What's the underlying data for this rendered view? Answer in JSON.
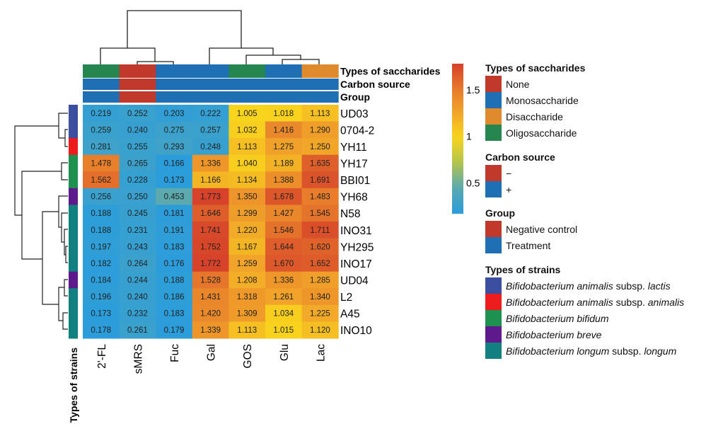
{
  "chart_data": {
    "type": "heatmap",
    "columns": [
      "2'-FL",
      "sMRS",
      "Fuc",
      "Gal",
      "GOS",
      "Glu",
      "Lac"
    ],
    "rows": [
      "UD03",
      "0704-2",
      "YH11",
      "YH17",
      "BBI01",
      "YH68",
      "N58",
      "INO31",
      "YH295",
      "INO17",
      "UD04",
      "L2",
      "A45",
      "INO10"
    ],
    "values": [
      [
        0.219,
        0.252,
        0.203,
        0.222,
        1.005,
        1.018,
        1.113
      ],
      [
        0.259,
        0.24,
        0.275,
        0.257,
        1.032,
        1.416,
        1.29
      ],
      [
        0.281,
        0.255,
        0.293,
        0.248,
        1.113,
        1.275,
        1.25
      ],
      [
        1.478,
        0.265,
        0.166,
        1.336,
        1.04,
        1.189,
        1.635
      ],
      [
        1.562,
        0.228,
        0.173,
        1.166,
        1.134,
        1.388,
        1.691
      ],
      [
        0.256,
        0.25,
        0.453,
        1.773,
        1.35,
        1.678,
        1.483
      ],
      [
        0.188,
        0.245,
        0.181,
        1.646,
        1.299,
        1.427,
        1.545
      ],
      [
        0.188,
        0.231,
        0.191,
        1.741,
        1.22,
        1.546,
        1.711
      ],
      [
        0.197,
        0.243,
        0.183,
        1.752,
        1.167,
        1.644,
        1.62
      ],
      [
        0.182,
        0.264,
        0.176,
        1.772,
        1.259,
        1.67,
        1.652
      ],
      [
        0.184,
        0.244,
        0.188,
        1.528,
        1.208,
        1.336,
        1.285
      ],
      [
        0.196,
        0.24,
        0.186,
        1.431,
        1.318,
        1.261,
        1.34
      ],
      [
        0.173,
        0.232,
        0.183,
        1.42,
        1.309,
        1.034,
        1.225
      ],
      [
        0.178,
        0.261,
        0.179,
        1.339,
        1.113,
        1.015,
        1.12
      ]
    ],
    "colorbar": {
      "ticks": [
        "1.5",
        "1",
        "0.5"
      ],
      "tick_values": [
        1.5,
        1.0,
        0.5
      ],
      "range": [
        0.17,
        1.78
      ],
      "colors": [
        "#2b9ddb",
        "#5aa9b0",
        "#b4c44c",
        "#f9d51c",
        "#f1a32a",
        "#e6782b",
        "#d6402a"
      ]
    },
    "column_annotations": [
      {
        "label": "Types of saccharides",
        "values": [
          "Oligosaccharide",
          "None",
          "Monosaccharide",
          "Monosaccharide",
          "Oligosaccharide",
          "Monosaccharide",
          "Disaccharide"
        ]
      },
      {
        "label": "Carbon source",
        "values": [
          "+",
          "−",
          "+",
          "+",
          "+",
          "+",
          "+"
        ]
      },
      {
        "label": "Group",
        "values": [
          "Treatment",
          "Negative control",
          "Treatment",
          "Treatment",
          "Treatment",
          "Treatment",
          "Treatment"
        ]
      }
    ],
    "row_annotation": {
      "label": "Types of strains",
      "values": [
        "lactis",
        "lactis",
        "animalis",
        "bifidum",
        "bifidum",
        "breve",
        "longum",
        "longum",
        "longum",
        "longum",
        "breve",
        "longum",
        "longum",
        "longum"
      ]
    },
    "legends": [
      {
        "title": "Types of saccharides",
        "items": [
          {
            "key": "None",
            "label": "None",
            "color": "#c0392b"
          },
          {
            "key": "Monosaccharide",
            "label": "Monosaccharide",
            "color": "#1f6fb5"
          },
          {
            "key": "Disaccharide",
            "label": "Disaccharide",
            "color": "#e08a2e"
          },
          {
            "key": "Oligosaccharide",
            "label": "Oligosaccharide",
            "color": "#25874f"
          }
        ]
      },
      {
        "title": "Carbon source",
        "items": [
          {
            "key": "−",
            "label": "−",
            "color": "#c0392b"
          },
          {
            "key": "+",
            "label": "+",
            "color": "#1f6fb5"
          }
        ]
      },
      {
        "title": "Group",
        "items": [
          {
            "key": "Negative control",
            "label": "Negative control",
            "color": "#c0392b"
          },
          {
            "key": "Treatment",
            "label": "Treatment",
            "color": "#1f6fb5"
          }
        ]
      },
      {
        "title": "Types of strains",
        "items": [
          {
            "key": "lactis",
            "italic": "Bifidobacterium animalis",
            "plain": " subsp. ",
            "italic2": "lactis",
            "color": "#3b4ea0"
          },
          {
            "key": "animalis",
            "italic": "Bifidobacterium animalis",
            "plain": " subsp. ",
            "italic2": "animalis",
            "color": "#ee1c1c"
          },
          {
            "key": "bifidum",
            "italic": "Bifidobacterium bifidum",
            "plain": "",
            "italic2": "",
            "color": "#1e9150"
          },
          {
            "key": "breve",
            "italic": "Bifidobacterium breve",
            "plain": "",
            "italic2": "",
            "color": "#5e1a8c"
          },
          {
            "key": "longum",
            "italic": "Bifidobacterium longum",
            "plain": " subsp. ",
            "italic2": "longum",
            "color": "#128080"
          }
        ]
      }
    ]
  }
}
